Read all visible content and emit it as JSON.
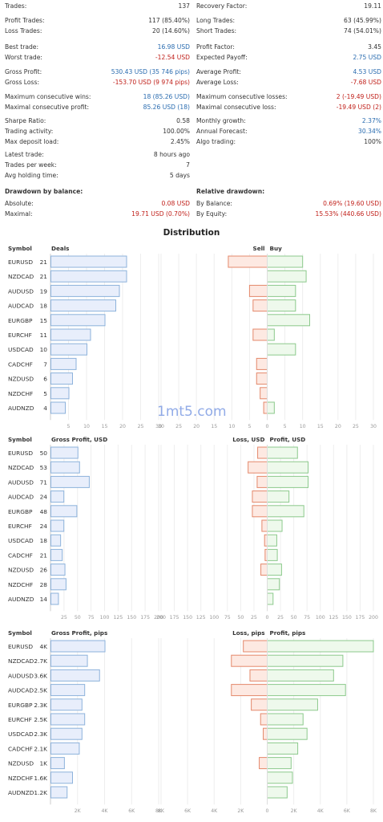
{
  "stats": {
    "left": [
      {
        "k": "Trades:",
        "v": "137"
      },
      {
        "k": "Profit Trades:",
        "v": "117 (85.40%)"
      },
      {
        "k": "Loss Trades:",
        "v": "20 (14.60%)"
      },
      {
        "k": "Best trade:",
        "v": "16.98 USD",
        "color": "blue"
      },
      {
        "k": "Worst trade:",
        "v": "-12.54 USD",
        "color": "red"
      },
      {
        "k": "Gross Profit:",
        "v": "530.43 USD (35 746 pips)",
        "color": "blue"
      },
      {
        "k": "Gross Loss:",
        "v": "-153.70 USD (9 974 pips)",
        "color": "red"
      },
      {
        "k": "Maximum consecutive wins:",
        "v": "18 (85.26 USD)",
        "color": "blue"
      },
      {
        "k": "Maximal consecutive profit:",
        "v": "85.26 USD (18)",
        "color": "blue"
      },
      {
        "k": "Sharpe Ratio:",
        "v": "0.58"
      },
      {
        "k": "Trading activity:",
        "v": "100.00%"
      },
      {
        "k": "Max deposit load:",
        "v": "2.45%"
      },
      {
        "k": "Latest trade:",
        "v": "8 hours ago"
      },
      {
        "k": "Trades per week:",
        "v": "7"
      },
      {
        "k": "Avg holding time:",
        "v": "5 days"
      }
    ],
    "right": [
      {
        "k": "Recovery Factor:",
        "v": "19.11"
      },
      {
        "k": "Long Trades:",
        "v": "63 (45.99%)"
      },
      {
        "k": "Short Trades:",
        "v": "74 (54.01%)"
      },
      {
        "k": "Profit Factor:",
        "v": "3.45"
      },
      {
        "k": "Expected Payoff:",
        "v": "2.75 USD",
        "color": "blue"
      },
      {
        "k": "Average Profit:",
        "v": "4.53 USD",
        "color": "blue"
      },
      {
        "k": "Average Loss:",
        "v": "-7.68 USD",
        "color": "red"
      },
      {
        "k": "Maximum consecutive losses:",
        "v": "2 (-19.49 USD)",
        "color": "red"
      },
      {
        "k": "Maximal consecutive loss:",
        "v": "-19.49 USD (2)",
        "color": "red"
      },
      {
        "k": "Monthly growth:",
        "v": "2.37%",
        "color": "blue"
      },
      {
        "k": "Annual Forecast:",
        "v": "30.34%",
        "color": "blue"
      },
      {
        "k": "Algo trading:",
        "v": "100%"
      }
    ]
  },
  "drawdown": {
    "balance_title": "Drawdown by balance:",
    "balance": [
      {
        "k": "Absolute:",
        "v": "0.08 USD",
        "color": "red"
      },
      {
        "k": "Maximal:",
        "v": "19.71 USD (0.70%)",
        "color": "red"
      }
    ],
    "relative_title": "Relative drawdown:",
    "relative": [
      {
        "k": "By Balance:",
        "v": "0.69% (19.60 USD)",
        "color": "red"
      },
      {
        "k": "By Equity:",
        "v": "15.53% (440.66 USD)",
        "color": "red"
      }
    ]
  },
  "distribution_title": "Distribution",
  "watermark": "1mt5.com",
  "colors": {
    "blue_fill": "#e8eefb",
    "blue_stroke": "#8db2db",
    "red_fill": "#fde9e2",
    "red_stroke": "#e4886b",
    "green_fill": "#eef9ec",
    "green_stroke": "#8cc98c",
    "grid": "#eeeeee"
  },
  "symbols": [
    "EURUSD",
    "NZDCAD",
    "AUDUSD",
    "AUDCAD",
    "EURGBP",
    "EURCHF",
    "USDCAD",
    "CADCHF",
    "NZDUSD",
    "NZDCHF",
    "AUDNZD"
  ],
  "chart_data": [
    {
      "type": "bar",
      "symbol_header": "Symbol",
      "left_header": "Deals",
      "right_header_neg": "Sell",
      "right_header_pos": "Buy",
      "left_values": [
        21,
        21,
        19,
        18,
        15,
        11,
        10,
        7,
        6,
        5,
        4
      ],
      "left_labels": [
        "21",
        "21",
        "19",
        "18",
        "15",
        "11",
        "10",
        "7",
        "6",
        "5",
        "4"
      ],
      "left_ticks": [
        "5",
        "10",
        "15",
        "20",
        "25",
        "30"
      ],
      "left_max": 30,
      "neg_values": [
        11,
        0,
        5,
        4,
        0,
        4,
        0,
        3,
        3,
        2,
        1
      ],
      "pos_values": [
        10,
        11,
        8,
        8,
        12,
        2,
        8,
        0,
        0,
        0,
        2
      ],
      "right_ticks": [
        "30",
        "25",
        "20",
        "15",
        "10",
        "5",
        "0",
        "5",
        "10",
        "15",
        "20",
        "25",
        "30"
      ],
      "right_max": 30
    },
    {
      "type": "bar",
      "symbol_header": "Symbol",
      "left_header": "Gross Profit, USD",
      "right_header_neg": "Loss, USD",
      "right_header_pos": "Profit, USD",
      "left_values": [
        50,
        53,
        71,
        24,
        48,
        24,
        18,
        21,
        26,
        28,
        14
      ],
      "left_labels": [
        "50",
        "53",
        "71",
        "24",
        "48",
        "24",
        "18",
        "21",
        "26",
        "28",
        "14"
      ],
      "left_ticks": [
        "25",
        "50",
        "75",
        "100",
        "125",
        "150",
        "175",
        "200"
      ],
      "left_max": 200,
      "neg_values": [
        18,
        36,
        19,
        28,
        28,
        10,
        5,
        4,
        12,
        0,
        0
      ],
      "pos_values": [
        57,
        77,
        77,
        41,
        69,
        28,
        18,
        19,
        27,
        23,
        11
      ],
      "right_ticks": [
        "200",
        "175",
        "150",
        "125",
        "100",
        "75",
        "50",
        "25",
        "0",
        "25",
        "50",
        "75",
        "100",
        "125",
        "150",
        "175",
        "200"
      ],
      "right_max": 200
    },
    {
      "type": "bar",
      "symbol_header": "Symbol",
      "left_header": "Gross Profit, pips",
      "right_header_neg": "Loss, pips",
      "right_header_pos": "Profit, pips",
      "left_values": [
        4000,
        2700,
        3600,
        2500,
        2300,
        2500,
        2300,
        2100,
        1000,
        1600,
        1200
      ],
      "left_labels": [
        "4K",
        "2.7K",
        "3.6K",
        "2.5K",
        "2.3K",
        "2.5K",
        "2.3K",
        "2.1K",
        "1K",
        "1.6K",
        "1.2K"
      ],
      "left_ticks": [
        "2K",
        "4K",
        "6K",
        "8K"
      ],
      "left_max": 8000,
      "neg_values": [
        1800,
        2700,
        1300,
        2700,
        1200,
        500,
        300,
        0,
        600,
        0,
        0
      ],
      "pos_values": [
        8000,
        5700,
        5000,
        5900,
        3800,
        2700,
        3000,
        2300,
        1800,
        1900,
        1500
      ],
      "right_ticks": [
        "8K",
        "6K",
        "4K",
        "2K",
        "0",
        "2K",
        "4K",
        "6K",
        "8K"
      ],
      "right_max": 8000
    }
  ]
}
